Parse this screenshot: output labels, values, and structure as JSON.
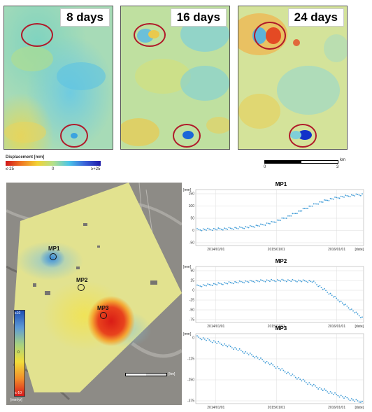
{
  "panels": [
    {
      "label": "8 days"
    },
    {
      "label": "16 days"
    },
    {
      "label": "24 days"
    }
  ],
  "legend": {
    "title": "Displacement [mm]",
    "min_label": "≤-25",
    "mid_label": "0",
    "max_label": "≥+25"
  },
  "scalebar": {
    "left_label": "0",
    "right_label": "3",
    "unit": "km"
  },
  "map": {
    "points": [
      {
        "label": "MP1"
      },
      {
        "label": "MP2"
      },
      {
        "label": "MP3"
      }
    ],
    "colorbar": {
      "top_label": "≥10",
      "mid_label": "0",
      "bottom_label": "≤-10",
      "unit": "[mm/yr]"
    },
    "scalebar_unit": "[km]"
  },
  "charts": [
    {
      "title": "MP1",
      "y_unit": "[mm]",
      "y_ticks": [
        "150",
        "100",
        "50",
        "0",
        "-50"
      ],
      "x_ticks": [
        "2014/01/01",
        "2015/01/01",
        "2016/01/01"
      ],
      "x_unit": "[date]"
    },
    {
      "title": "MP2",
      "y_unit": "[mm]",
      "y_ticks": [
        "50",
        "25",
        "0",
        "-25",
        "-50",
        "-75"
      ],
      "x_ticks": [
        "2014/01/01",
        "2015/01/01",
        "2016/01/01"
      ],
      "x_unit": "[date]"
    },
    {
      "title": "MP3",
      "y_unit": "[mm]",
      "y_ticks": [
        "0",
        "-125",
        "-250",
        "-375"
      ],
      "x_ticks": [
        "2014/01/01",
        "2015/01/01",
        "2016/01/01"
      ],
      "x_unit": "[date]"
    }
  ],
  "colors": {
    "circle": "#b01a2a",
    "series": "#3d9ad6",
    "grid": "#dcdcdc"
  }
}
